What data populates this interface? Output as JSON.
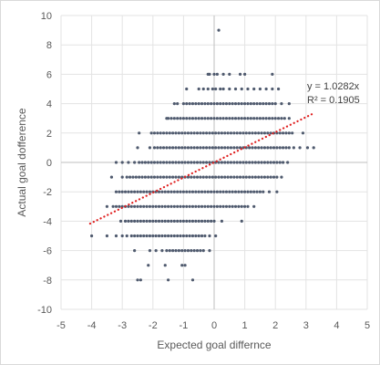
{
  "chart_data": {
    "type": "scatter",
    "title": "",
    "xlabel": "Expected goal differnce",
    "ylabel": "Actual goal dofference",
    "xlim": [
      -5,
      5
    ],
    "ylim": [
      -10,
      10
    ],
    "x_ticks": [
      -5,
      -4,
      -3,
      -2,
      -1,
      0,
      1,
      2,
      3,
      4,
      5
    ],
    "y_ticks": [
      -10,
      -8,
      -6,
      -4,
      -2,
      0,
      2,
      4,
      6,
      8,
      10
    ],
    "grid": true,
    "legend": "none",
    "point_color": "#4f5a6e",
    "series": [
      {
        "rows": [
          {
            "y": 9,
            "x": [
              0.15
            ]
          },
          {
            "y": 6,
            "x": [
              -0.2,
              -0.15,
              0,
              0.1,
              0.3,
              0.5,
              0.85,
              1.0,
              1.9
            ]
          },
          {
            "y": 5,
            "x": [
              -0.9,
              -0.5,
              -0.35,
              -0.2,
              -0.05,
              0.05,
              0.2,
              0.3,
              0.5,
              0.7,
              0.9,
              1.1,
              1.3,
              1.5,
              1.7,
              1.9,
              2.1
            ]
          },
          {
            "y": 4,
            "x": [
              -1.3,
              -1.2,
              -1.0,
              -0.9,
              -0.8,
              -0.7,
              -0.6,
              -0.5,
              -0.4,
              -0.3,
              -0.2,
              -0.1,
              0.0,
              0.1,
              0.2,
              0.3,
              0.4,
              0.5,
              0.6,
              0.7,
              0.8,
              0.9,
              1.0,
              1.1,
              1.2,
              1.3,
              1.4,
              1.5,
              1.6,
              1.7,
              1.8,
              1.9,
              2.0,
              2.2,
              2.45
            ]
          },
          {
            "y": 3,
            "x": [
              -1.55,
              -1.5,
              -1.4,
              -1.3,
              -1.2,
              -1.1,
              -1.0,
              -0.9,
              -0.8,
              -0.7,
              -0.6,
              -0.5,
              -0.4,
              -0.3,
              -0.2,
              -0.1,
              0.0,
              0.1,
              0.2,
              0.3,
              0.4,
              0.5,
              0.6,
              0.7,
              0.8,
              0.9,
              1.0,
              1.1,
              1.2,
              1.3,
              1.4,
              1.5,
              1.6,
              1.7,
              1.8,
              1.9,
              2.0,
              2.1,
              2.2,
              2.3,
              2.45
            ]
          },
          {
            "y": 2,
            "x": [
              -2.45,
              -2.05,
              -1.95,
              -1.85,
              -1.75,
              -1.65,
              -1.55,
              -1.45,
              -1.35,
              -1.25,
              -1.15,
              -1.05,
              -0.95,
              -0.85,
              -0.75,
              -0.65,
              -0.55,
              -0.45,
              -0.35,
              -0.25,
              -0.15,
              -0.05,
              0.05,
              0.15,
              0.25,
              0.35,
              0.45,
              0.55,
              0.65,
              0.75,
              0.85,
              0.95,
              1.05,
              1.15,
              1.25,
              1.35,
              1.45,
              1.55,
              1.65,
              1.75,
              1.85,
              1.95,
              2.05,
              2.15,
              2.25,
              2.35,
              2.45,
              2.55,
              2.9
            ]
          },
          {
            "y": 1,
            "x": [
              -2.5,
              -2.1,
              -1.95,
              -1.85,
              -1.75,
              -1.65,
              -1.55,
              -1.45,
              -1.35,
              -1.25,
              -1.15,
              -1.05,
              -0.95,
              -0.85,
              -0.75,
              -0.65,
              -0.55,
              -0.45,
              -0.35,
              -0.25,
              -0.15,
              -0.05,
              0.05,
              0.15,
              0.25,
              0.35,
              0.45,
              0.55,
              0.65,
              0.75,
              0.85,
              0.95,
              1.05,
              1.15,
              1.25,
              1.35,
              1.45,
              1.55,
              1.65,
              1.75,
              1.85,
              1.95,
              2.05,
              2.15,
              2.25,
              2.35,
              2.45,
              2.6,
              2.8,
              3.05,
              3.25
            ]
          },
          {
            "y": 0,
            "x": [
              -3.2,
              -3.0,
              -2.8,
              -2.6,
              -2.45,
              -2.35,
              -2.25,
              -2.15,
              -2.05,
              -1.95,
              -1.85,
              -1.75,
              -1.65,
              -1.55,
              -1.45,
              -1.35,
              -1.25,
              -1.15,
              -1.05,
              -0.95,
              -0.85,
              -0.75,
              -0.65,
              -0.55,
              -0.45,
              -0.35,
              -0.25,
              -0.15,
              -0.05,
              0.05,
              0.15,
              0.25,
              0.35,
              0.45,
              0.55,
              0.65,
              0.75,
              0.85,
              0.95,
              1.05,
              1.15,
              1.25,
              1.35,
              1.45,
              1.55,
              1.65,
              1.75,
              1.85,
              1.95,
              2.05,
              2.15,
              2.25,
              2.4
            ]
          },
          {
            "y": -1,
            "x": [
              -3.35,
              -3.0,
              -2.85,
              -2.75,
              -2.65,
              -2.55,
              -2.45,
              -2.35,
              -2.25,
              -2.15,
              -2.05,
              -1.95,
              -1.85,
              -1.75,
              -1.65,
              -1.55,
              -1.45,
              -1.35,
              -1.25,
              -1.15,
              -1.05,
              -0.95,
              -0.85,
              -0.75,
              -0.65,
              -0.55,
              -0.45,
              -0.35,
              -0.25,
              -0.15,
              -0.05,
              0.05,
              0.15,
              0.25,
              0.35,
              0.45,
              0.55,
              0.65,
              0.75,
              0.85,
              0.95,
              1.05,
              1.15,
              1.25,
              1.35,
              1.45,
              1.55,
              1.65,
              1.75,
              1.85,
              1.95,
              2.05,
              2.2
            ]
          },
          {
            "y": -2,
            "x": [
              -3.2,
              -3.1,
              -3.0,
              -2.9,
              -2.8,
              -2.7,
              -2.6,
              -2.5,
              -2.4,
              -2.3,
              -2.2,
              -2.1,
              -2.0,
              -1.9,
              -1.8,
              -1.7,
              -1.6,
              -1.5,
              -1.4,
              -1.3,
              -1.2,
              -1.1,
              -1.0,
              -0.9,
              -0.8,
              -0.7,
              -0.6,
              -0.5,
              -0.4,
              -0.3,
              -0.2,
              -0.1,
              0.0,
              0.1,
              0.2,
              0.3,
              0.4,
              0.5,
              0.6,
              0.7,
              0.8,
              0.9,
              1.0,
              1.1,
              1.2,
              1.3,
              1.4,
              1.5,
              1.6,
              1.8,
              2.05
            ]
          },
          {
            "y": -3,
            "x": [
              -3.5,
              -3.3,
              -3.2,
              -3.1,
              -3.0,
              -2.9,
              -2.8,
              -2.7,
              -2.6,
              -2.5,
              -2.4,
              -2.3,
              -2.2,
              -2.1,
              -2.0,
              -1.9,
              -1.8,
              -1.7,
              -1.6,
              -1.5,
              -1.4,
              -1.3,
              -1.2,
              -1.1,
              -1.0,
              -0.9,
              -0.8,
              -0.7,
              -0.6,
              -0.5,
              -0.4,
              -0.3,
              -0.2,
              -0.1,
              0.0,
              0.1,
              0.2,
              0.3,
              0.4,
              0.5,
              0.6,
              0.7,
              0.8,
              0.9,
              1.0,
              1.1,
              1.3
            ]
          },
          {
            "y": -4,
            "x": [
              -3.05,
              -2.9,
              -2.8,
              -2.7,
              -2.6,
              -2.5,
              -2.4,
              -2.3,
              -2.2,
              -2.1,
              -2.0,
              -1.9,
              -1.8,
              -1.7,
              -1.6,
              -1.5,
              -1.4,
              -1.3,
              -1.2,
              -1.1,
              -1.0,
              -0.9,
              -0.8,
              -0.7,
              -0.6,
              -0.5,
              -0.4,
              -0.3,
              -0.2,
              -0.1,
              0.0,
              0.25,
              0.9
            ]
          },
          {
            "y": -5,
            "x": [
              -4.0,
              -3.5,
              -3.2,
              -3.0,
              -2.85,
              -2.7,
              -2.6,
              -2.5,
              -2.4,
              -2.3,
              -2.2,
              -2.1,
              -2.0,
              -1.9,
              -1.8,
              -1.7,
              -1.6,
              -1.5,
              -1.4,
              -1.3,
              -1.2,
              -1.1,
              -1.0,
              -0.9,
              -0.8,
              -0.7,
              -0.6,
              -0.5,
              -0.4,
              -0.3,
              -0.15,
              0.05
            ]
          },
          {
            "y": -6,
            "x": [
              -2.6,
              -2.1,
              -1.9,
              -1.7,
              -1.55,
              -1.45,
              -1.35,
              -1.25,
              -1.15,
              -1.05,
              -0.95,
              -0.85,
              -0.75,
              -0.65,
              -0.55,
              -0.45,
              -0.35,
              -0.15
            ]
          },
          {
            "y": -7,
            "x": [
              -2.15,
              -1.6,
              -1.05,
              -0.95
            ]
          },
          {
            "y": -8,
            "x": [
              -2.5,
              -2.4,
              -1.5,
              -0.7
            ]
          }
        ]
      }
    ],
    "trendline": {
      "equation": "y = 1.0282x",
      "r_squared": "R² = 0.1905",
      "slope": 1.0282,
      "x_range": [
        -4.05,
        3.2
      ],
      "color": "#e02020",
      "style": "dotted"
    }
  }
}
